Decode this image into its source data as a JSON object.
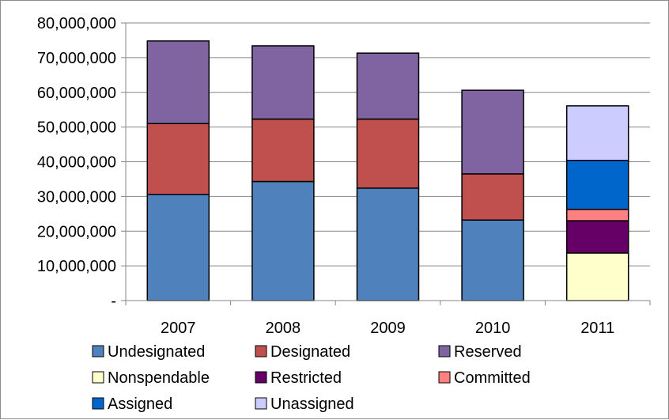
{
  "chart_data": {
    "type": "bar",
    "stacked": true,
    "categories": [
      "2007",
      "2008",
      "2009",
      "2010",
      "2011"
    ],
    "series": [
      {
        "name": "Undesignated",
        "color": "#4F81BD",
        "values": [
          30600000,
          34300000,
          32400000,
          23200000,
          0
        ]
      },
      {
        "name": "Designated",
        "color": "#C0504D",
        "values": [
          20400000,
          18000000,
          19900000,
          13300000,
          0
        ]
      },
      {
        "name": "Reserved",
        "color": "#8064A2",
        "values": [
          23800000,
          21100000,
          19000000,
          24100000,
          0
        ]
      },
      {
        "name": "Nonspendable",
        "color": "#FFFFCC",
        "values": [
          0,
          0,
          0,
          0,
          13700000
        ]
      },
      {
        "name": "Restricted",
        "color": "#660066",
        "values": [
          0,
          0,
          0,
          0,
          9300000
        ]
      },
      {
        "name": "Committed",
        "color": "#FF8080",
        "values": [
          0,
          0,
          0,
          0,
          3300000
        ]
      },
      {
        "name": "Assigned",
        "color": "#0066CC",
        "values": [
          0,
          0,
          0,
          0,
          14100000
        ]
      },
      {
        "name": "Unassigned",
        "color": "#CCCCFF",
        "values": [
          0,
          0,
          0,
          0,
          15700000
        ]
      }
    ],
    "y_ticks": [
      "-",
      "10,000,000",
      "20,000,000",
      "30,000,000",
      "40,000,000",
      "50,000,000",
      "60,000,000",
      "70,000,000",
      "80,000,000"
    ],
    "ylim": [
      0,
      80000000
    ],
    "y_step": 10000000,
    "legend_position": "bottom",
    "grid": true
  }
}
